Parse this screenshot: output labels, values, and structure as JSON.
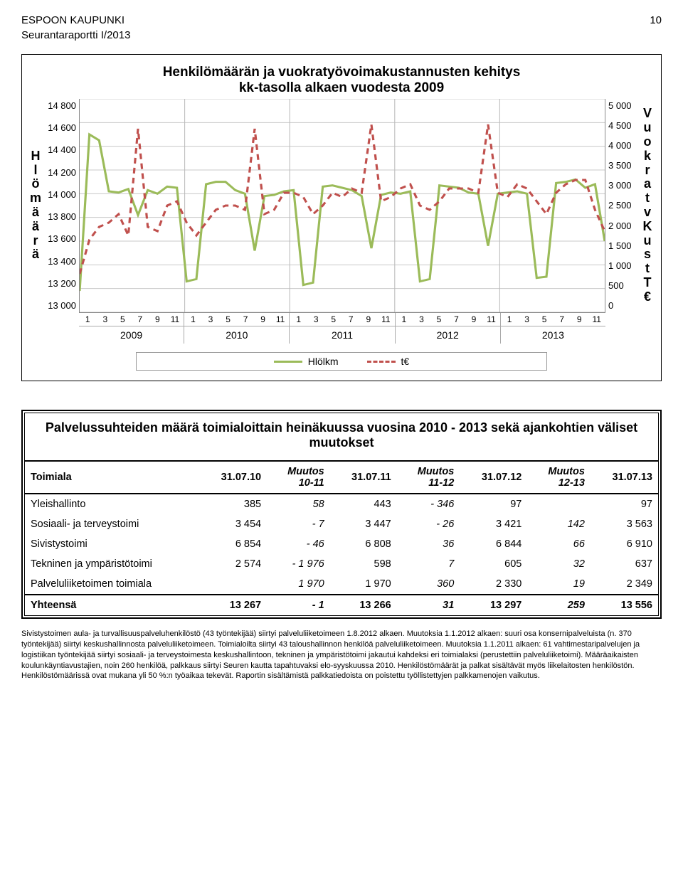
{
  "header": {
    "org": "ESPOON KAUPUNKI",
    "page": "10",
    "subtitle": "Seurantaraportti I/2013"
  },
  "chart": {
    "title1": "Henkilömäärän ja vuokratyövoimakustannusten kehitys",
    "title2": "kk-tasolla alkaen vuodesta 2009",
    "type": "line-dual-axis",
    "left_axis": {
      "label": "Hlömäärä",
      "min": 13000,
      "max": 14800,
      "step": 200,
      "ticks": [
        "14 800",
        "14 600",
        "14 400",
        "14 200",
        "14 000",
        "13 800",
        "13 600",
        "13 400",
        "13 200",
        "13 000"
      ]
    },
    "right_axis": {
      "label": "Vuokratv Kust T€",
      "min": 0,
      "max": 5000,
      "step": 500,
      "ticks": [
        "5 000",
        "4 500",
        "4 000",
        "3 500",
        "3 000",
        "2 500",
        "2 000",
        "1 500",
        "1 000",
        "500",
        "0"
      ]
    },
    "x": {
      "months": [
        "1",
        "3",
        "5",
        "7",
        "9",
        "11"
      ],
      "years": [
        "2009",
        "2010",
        "2011",
        "2012",
        "2013"
      ]
    },
    "series": [
      {
        "name": "Hlölkm",
        "axis": "left",
        "color": "#9bbb59",
        "width": 3,
        "style": "solid",
        "values": [
          13180,
          14500,
          14450,
          14020,
          14010,
          14040,
          13820,
          14030,
          14000,
          14060,
          14050,
          13260,
          13280,
          14080,
          14100,
          14100,
          14030,
          14000,
          13520,
          13980,
          13990,
          14020,
          14030,
          13230,
          13250,
          14060,
          14070,
          14050,
          14030,
          13980,
          13540,
          13990,
          14010,
          14000,
          14020,
          13260,
          13280,
          14070,
          14060,
          14050,
          14010,
          14000,
          13560,
          14000,
          14010,
          14020,
          14000,
          13290,
          13300,
          14090,
          14100,
          14120,
          14050,
          14080,
          13600
        ]
      },
      {
        "name": "t€",
        "axis": "right",
        "color": "#c0504d",
        "width": 3,
        "style": "dashed",
        "values": [
          900,
          1700,
          2000,
          2100,
          2300,
          1800,
          4300,
          2000,
          1900,
          2500,
          2600,
          2100,
          1800,
          2100,
          2400,
          2500,
          2500,
          2400,
          4300,
          2300,
          2400,
          2800,
          2800,
          2700,
          2300,
          2500,
          2800,
          2700,
          2900,
          2800,
          4400,
          2600,
          2700,
          2900,
          3000,
          2500,
          2400,
          2600,
          2900,
          2900,
          2900,
          2800,
          4400,
          2800,
          2700,
          3000,
          2900,
          2600,
          2300,
          2800,
          3000,
          3100,
          3100,
          2400,
          1900
        ]
      }
    ],
    "legend": {
      "s1": "Hlölkm",
      "s2": "t€"
    },
    "background_color": "#ffffff",
    "grid_color": "#c8c8c8"
  },
  "table": {
    "title": "Palvelussuhteiden määrä toimialoittain heinäkuussa vuosina 2010 - 2013 sekä ajankohtien väliset muutokset",
    "columns": [
      "Toimiala",
      "31.07.10",
      "Muutos 10-11",
      "31.07.11",
      "Muutos 11-12",
      "31.07.12",
      "Muutos 12-13",
      "31.07.13"
    ],
    "col_h": {
      "c0": "Toimiala",
      "c1": "31.07.10",
      "c2a": "Muutos",
      "c2b": "10-11",
      "c3": "31.07.11",
      "c4a": "Muutos",
      "c4b": "11-12",
      "c5": "31.07.12",
      "c6a": "Muutos",
      "c6b": "12-13",
      "c7": "31.07.13"
    },
    "rows": [
      {
        "label": "Yleishallinto",
        "c1": "385",
        "c2": "58",
        "c3": "443",
        "c4": "- 346",
        "c5": "97",
        "c6": "",
        "c7": "97"
      },
      {
        "label": "Sosiaali- ja terveystoimi",
        "c1": "3 454",
        "c2": "- 7",
        "c3": "3 447",
        "c4": "- 26",
        "c5": "3 421",
        "c6": "142",
        "c7": "3 563"
      },
      {
        "label": "Sivistystoimi",
        "c1": "6 854",
        "c2": "- 46",
        "c3": "6 808",
        "c4": "36",
        "c5": "6 844",
        "c6": "66",
        "c7": "6 910"
      },
      {
        "label": "Tekninen ja ympäristötoimi",
        "c1": "2 574",
        "c2": "- 1 976",
        "c3": "598",
        "c4": "7",
        "c5": "605",
        "c6": "32",
        "c7": "637"
      },
      {
        "label": "Palveluliiketoimen toimiala",
        "c1": "",
        "c2": "1 970",
        "c3": "1 970",
        "c4": "360",
        "c5": "2 330",
        "c6": "19",
        "c7": "2 349"
      }
    ],
    "total": {
      "label": "Yhteensä",
      "c1": "13 267",
      "c2": "- 1",
      "c3": "13 266",
      "c4": "31",
      "c5": "13 297",
      "c6": "259",
      "c7": "13 556"
    }
  },
  "footnote": "Sivistystoimen aula- ja turvallisuuspalveluhenkilöstö (43 työntekijää) siirtyi palveluliiketoimeen 1.8.2012 alkaen. Muutoksia 1.1.2012 alkaen: suuri osa konsernipalveluista (n. 370 työntekijää) siirtyi keskushallinnosta palveluliiketoimeen. Toimialoilta siirtyi 43 taloushallinnon henkilöä palveluliiketoimeen. Muutoksia 1.1.2011 alkaen: 61 vahtimestaripalvelujen ja logistiikan työntekijää siirtyi sosiaali- ja terveystoimesta keskushallintoon, tekninen ja ympäristötoimi jakautui kahdeksi eri toimialaksi (perustettiin palveluliiketoimi). Määräaikaisten koulunkäyntiavustajien, noin 260 henkilöä, palkkaus siirtyi Seuren kautta tapahtuvaksi elo-syyskuussa 2010. Henkilöstömäärät ja palkat sisältävät myös liikelaitosten henkilöstön. Henkilöstömäärissä ovat mukana yli 50 %:n työaikaa tekevät. Raportin sisältämistä palkkatiedoista on poistettu työllistettyjen palkkamenojen vaikutus."
}
